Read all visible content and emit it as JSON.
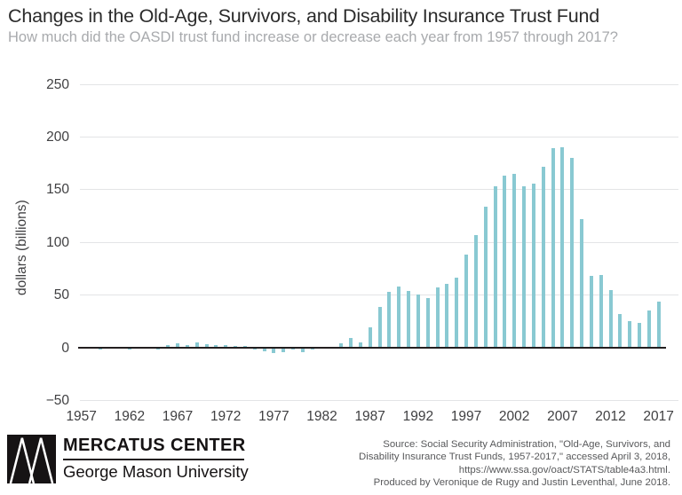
{
  "chart_data": {
    "type": "bar",
    "title": "Changes in the Old-Age, Survivors, and Disability Insurance Trust Fund",
    "subtitle": "How much did the OASDI trust fund increase or decrease each year from 1957 through 2017?",
    "ylabel": "dollars (billions)",
    "xlabel": "",
    "ylim": [
      -50,
      250
    ],
    "grid": true,
    "legend": "none",
    "ytick_values": [
      250,
      200,
      150,
      100,
      50,
      0,
      -50
    ],
    "ytick_labels": [
      "250",
      "200",
      "150",
      "100",
      "50",
      "0",
      "−50"
    ],
    "xtick_years": [
      1957,
      1962,
      1967,
      1972,
      1977,
      1982,
      1987,
      1992,
      1997,
      2002,
      2007,
      2012,
      2017
    ],
    "years": [
      1957,
      1958,
      1959,
      1960,
      1961,
      1962,
      1963,
      1964,
      1965,
      1966,
      1967,
      1968,
      1969,
      1970,
      1971,
      1972,
      1973,
      1974,
      1975,
      1976,
      1977,
      1978,
      1979,
      1980,
      1981,
      1982,
      1983,
      1984,
      1985,
      1986,
      1987,
      1988,
      1989,
      1990,
      1991,
      1992,
      1993,
      1994,
      1995,
      1996,
      1997,
      1998,
      1999,
      2000,
      2001,
      2002,
      2003,
      2004,
      2005,
      2006,
      2007,
      2008,
      2009,
      2010,
      2011,
      2012,
      2013,
      2014,
      2015,
      2016,
      2017
    ],
    "values": [
      0.5,
      0.2,
      -1.3,
      0.7,
      -0.4,
      -1.5,
      0.0,
      0.5,
      -1.3,
      2.5,
      4.0,
      2.5,
      5.2,
      3.7,
      2.9,
      2.3,
      1.6,
      1.5,
      -1.5,
      -3.2,
      -5.3,
      -4.0,
      -1.6,
      -3.8,
      -2.0,
      0.3,
      0.2,
      4.6,
      9.4,
      4.7,
      19.6,
      38.8,
      52.8,
      58.0,
      53.5,
      50.7,
      46.8,
      56.9,
      60.4,
      66.4,
      88.6,
      106.9,
      133.7,
      153.3,
      163.1,
      165.4,
      152.8,
      156.1,
      171.8,
      189.5,
      190.4,
      180.2,
      121.7,
      68.6,
      69.3,
      54.4,
      32.2,
      25.0,
      23.2,
      35.2,
      44.1
    ]
  },
  "colors": {
    "bar": "#89c9d2",
    "grid": "#e3e4e6",
    "zero_line": "#231f20",
    "title_text": "#2b2b2b",
    "subtitle_text": "#a8aaad",
    "tick_text": "#404042",
    "source_text": "#58595b",
    "logo_black": "#161314"
  },
  "footer": {
    "logo_title": "MERCATUS CENTER",
    "logo_subtitle": "George Mason University",
    "source_lines": [
      "Source: Social Security Administration, \"Old-Age, Survivors, and",
      "Disability Insurance Trust Funds, 1957-2017,\" accessed April 3, 2018,",
      "https://www.ssa.gov/oact/STATS/table4a3.html.",
      "Produced by Veronique de Rugy and Justin Leventhal, June 2018."
    ]
  }
}
